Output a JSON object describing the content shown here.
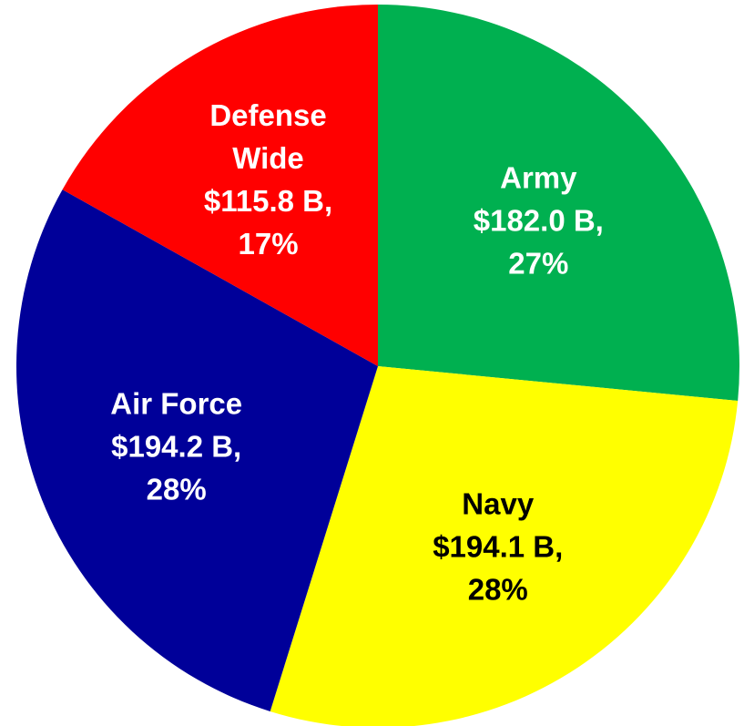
{
  "chart_data": {
    "type": "pie",
    "categories": [
      "Army",
      "Navy",
      "Air Force",
      "Defense Wide"
    ],
    "values": [
      182.0,
      194.1,
      194.2,
      115.8
    ],
    "value_labels": [
      "$182.0 B,",
      "$194.1 B,",
      "$194.2 B,",
      "$115.8 B,"
    ],
    "percent_labels": [
      "27%",
      "28%",
      "28%",
      "17%"
    ],
    "colors": [
      "#00b050",
      "#ffff00",
      "#000099",
      "#ff0000"
    ],
    "label_colors": [
      "#ffffff",
      "#000000",
      "#ffffff",
      "#ffffff"
    ]
  }
}
